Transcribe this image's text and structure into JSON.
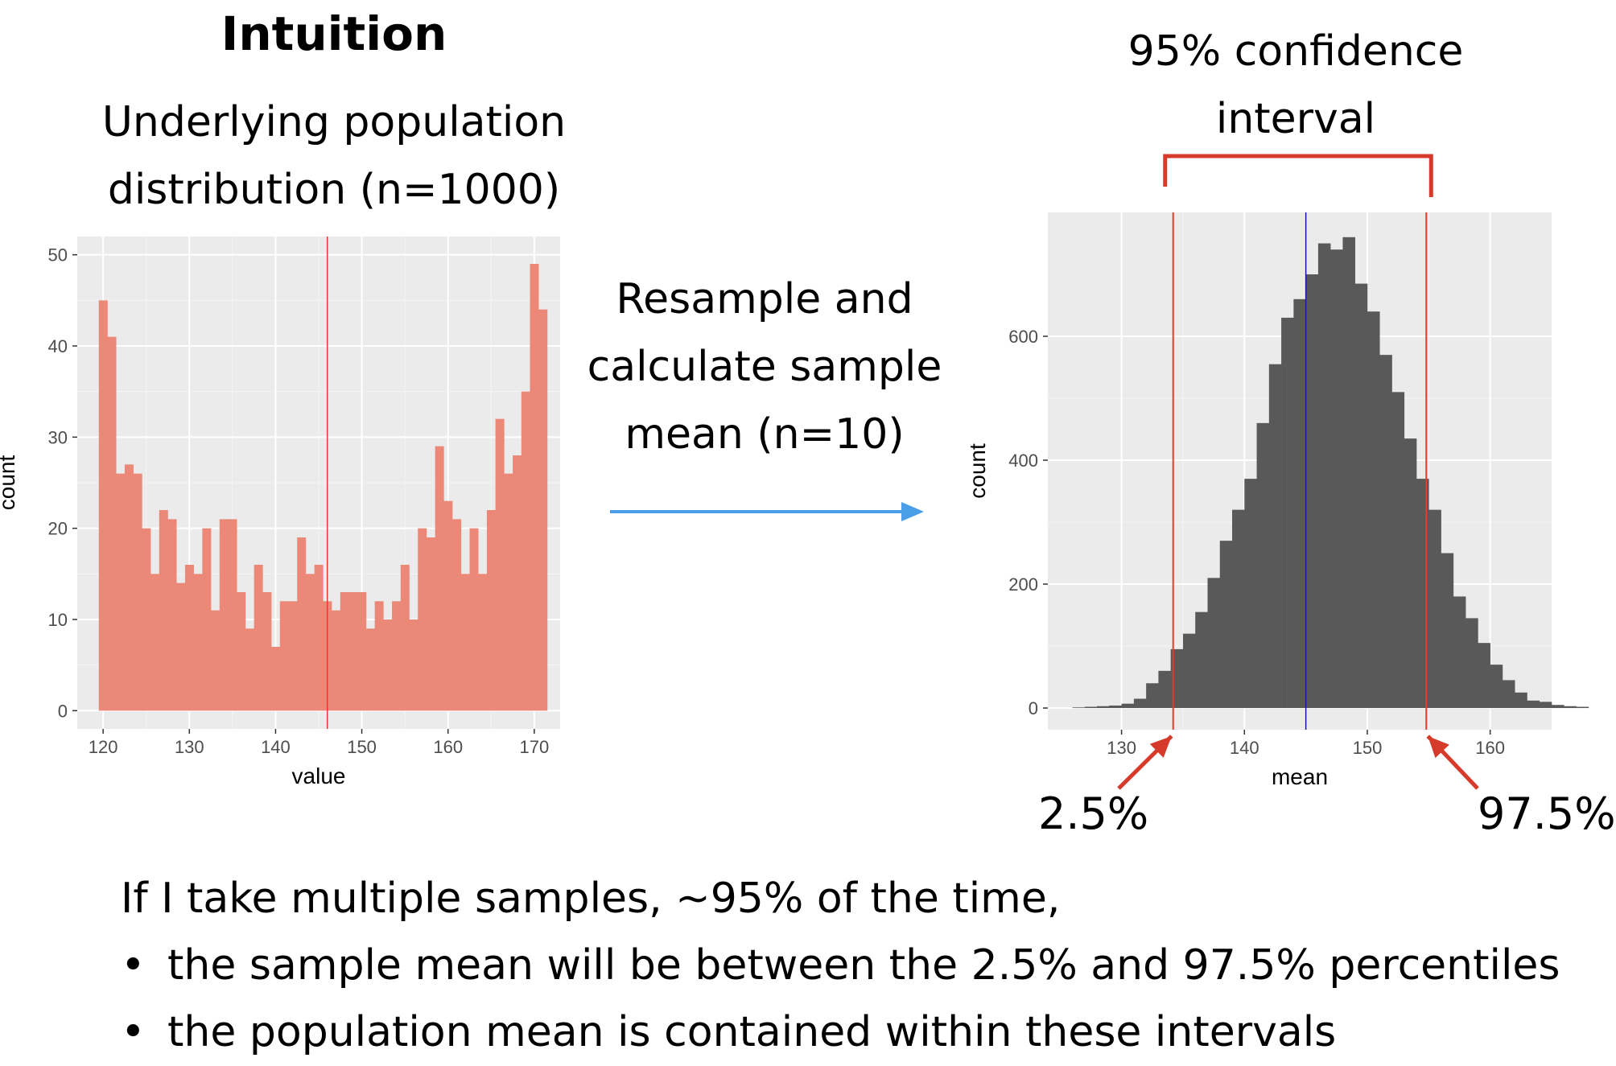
{
  "slide": {
    "title": "Intuition",
    "left_heading_line1": "Underlying population",
    "left_heading_line2": "distribution (n=1000)",
    "middle_line1": "Resample and",
    "middle_line2": "calculate sample",
    "middle_line3": "mean (n=10)",
    "ci_line1": "95% confidence",
    "ci_line2": "interval",
    "lower_label": "2.5%",
    "upper_label": "97.5%",
    "statement": "If I take multiple samples, ~95% of the time,",
    "bullets": [
      "the sample mean will be between the 2.5% and 97.5% percentiles",
      "the population mean is contained within these intervals"
    ],
    "colors": {
      "annotation": "#d63a2b",
      "arrow": "#4a9ee8"
    }
  },
  "chart_data": [
    {
      "type": "bar",
      "subtype": "histogram",
      "xlabel": "value",
      "ylabel": "count",
      "xlim": [
        117,
        173
      ],
      "ylim": [
        -2,
        52
      ],
      "xticks": [
        120,
        130,
        140,
        150,
        160,
        170
      ],
      "yticks": [
        0,
        10,
        20,
        30,
        40,
        50
      ],
      "bin_width": 1,
      "bin_start": 119.5,
      "values": [
        45,
        41,
        26,
        27,
        26,
        20,
        15,
        22,
        21,
        14,
        16,
        15,
        20,
        11,
        21,
        21,
        13,
        9,
        16,
        13,
        7,
        12,
        12,
        19,
        15,
        16,
        12,
        11,
        13,
        13,
        13,
        9,
        12,
        10,
        12,
        16,
        10,
        20,
        19,
        29,
        23,
        21,
        15,
        20,
        15,
        22,
        32,
        26,
        28,
        35,
        49,
        44
      ],
      "fill": "#eb8877",
      "vline": 146,
      "vline_color": "#e8392c",
      "background": "#ebebeb",
      "grid": true
    },
    {
      "type": "bar",
      "subtype": "histogram",
      "xlabel": "mean",
      "ylabel": "count",
      "xlim": [
        124,
        165
      ],
      "ylim": [
        -35,
        800
      ],
      "xticks": [
        130,
        140,
        150,
        160
      ],
      "yticks": [
        0,
        200,
        400,
        600
      ],
      "bin_width": 1,
      "bin_start": 126,
      "values": [
        1,
        2,
        3,
        4,
        7,
        15,
        40,
        60,
        95,
        120,
        155,
        210,
        270,
        320,
        370,
        460,
        555,
        630,
        660,
        700,
        750,
        740,
        760,
        685,
        640,
        570,
        510,
        435,
        370,
        320,
        250,
        180,
        145,
        105,
        70,
        45,
        25,
        12,
        10,
        5,
        3,
        2
      ],
      "fill": "#595959",
      "vline": 145,
      "vline_color": "#1a1aa0",
      "ci_lower": 134.2,
      "ci_upper": 154.8,
      "ci_color": "#e8392c",
      "background": "#ebebeb",
      "grid": true
    }
  ]
}
